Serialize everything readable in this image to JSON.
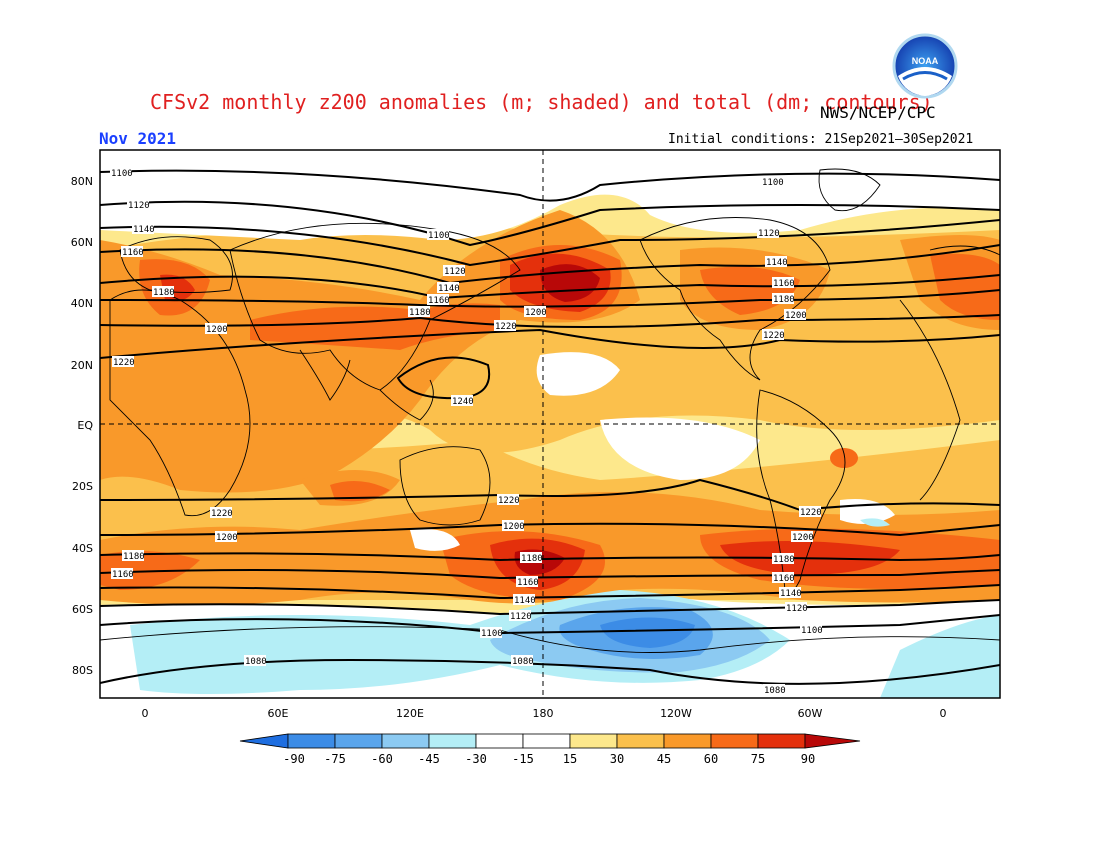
{
  "header": {
    "title": "CFSv2 monthly z200 anomalies (m; shaded) and total (dm; contours)",
    "org": "NWS/NCEP/CPC",
    "month": "Nov 2021",
    "initial": "Initial conditions: 21Sep2021–30Sep2021",
    "logo_text": "NOAA"
  },
  "axes": {
    "lat_labels": [
      "80N",
      "60N",
      "40N",
      "20N",
      "EQ",
      "20S",
      "40S",
      "60S",
      "80S"
    ],
    "lon_labels": [
      "0",
      "60E",
      "120E",
      "180",
      "120W",
      "60W",
      "0"
    ]
  },
  "colorbar": {
    "ticks": [
      "-90",
      "-75",
      "-60",
      "-45",
      "-30",
      "-15",
      "15",
      "30",
      "45",
      "60",
      "75",
      "90"
    ],
    "colors": [
      "#1e6ee0",
      "#3c8ce6",
      "#5aa5ec",
      "#8ccaf2",
      "#b4eef6",
      "#ffffff",
      "#fde88c",
      "#fbc04c",
      "#f9992a",
      "#f76a18",
      "#e4300c",
      "#b80808"
    ]
  },
  "contour_labels": [
    "1100",
    "1120",
    "1140",
    "1160",
    "1180",
    "1200",
    "1220",
    "1240",
    "1080"
  ],
  "colors": {
    "title": "#e02020",
    "month": "#1a3fff",
    "land_outline": "#000000"
  }
}
